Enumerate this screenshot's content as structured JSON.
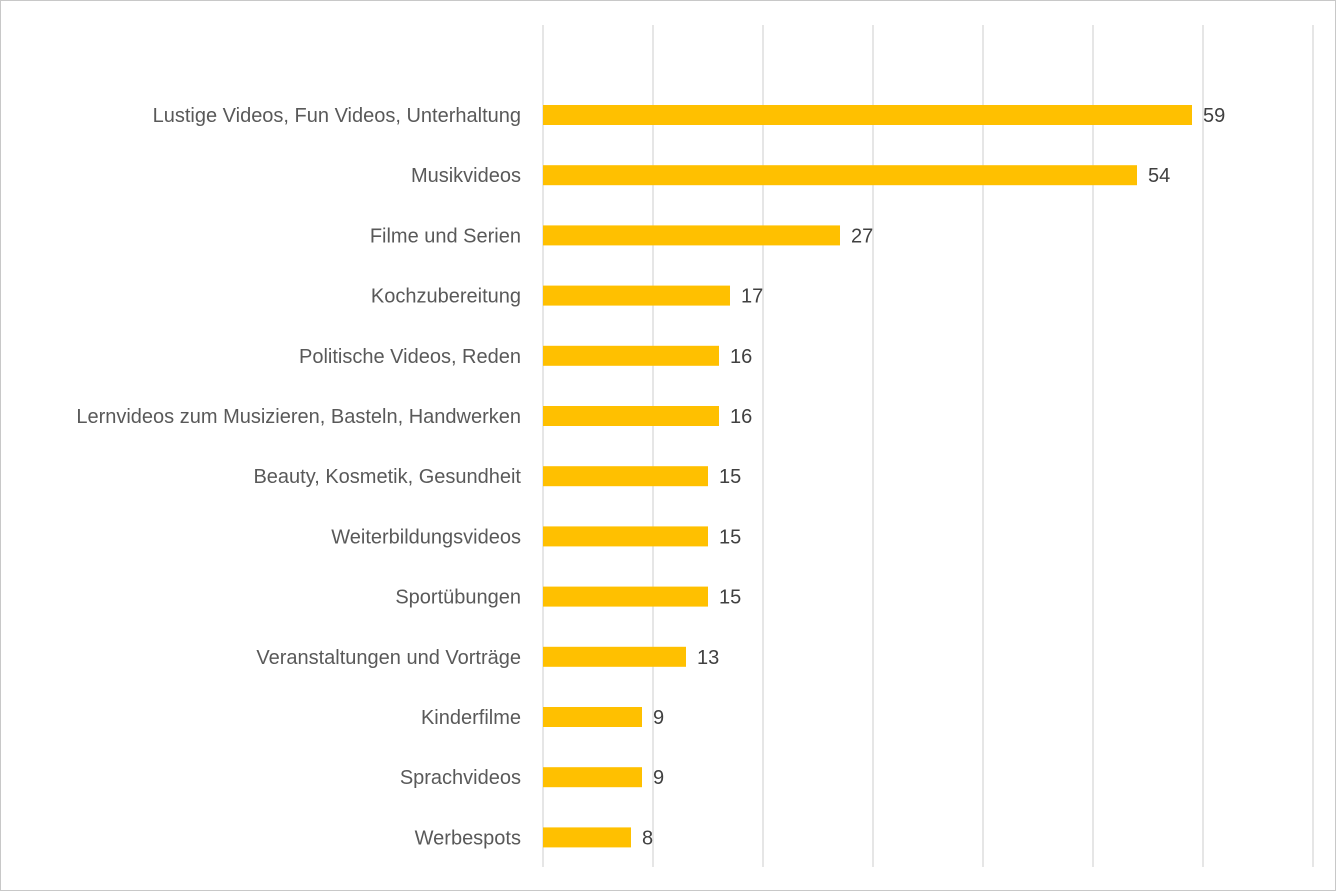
{
  "chart_data": {
    "type": "bar",
    "orientation": "horizontal",
    "title": "",
    "xlabel": "",
    "ylabel": "",
    "categories": [
      "Lustige Videos, Fun Videos, Unterhaltung",
      "Musikvideos",
      "Filme und Serien",
      "Kochzubereitung",
      "Politische Videos, Reden",
      "Lernvideos zum Musizieren, Basteln, Handwerken",
      "Beauty, Kosmetik, Gesundheit",
      "Weiterbildungsvideos",
      "Sportübungen",
      "Veranstaltungen und Vorträge",
      "Kinderfilme",
      "Sprachvideos",
      "Werbespots"
    ],
    "values": [
      59,
      54,
      27,
      17,
      16,
      16,
      15,
      15,
      15,
      13,
      9,
      9,
      8
    ],
    "xlim": [
      0,
      70
    ],
    "grid_step": 10,
    "grid": true,
    "tick_labels_shown": false,
    "data_labels": true,
    "bar_color": "#FFC000",
    "gridline_color": "#D9D9D9"
  }
}
